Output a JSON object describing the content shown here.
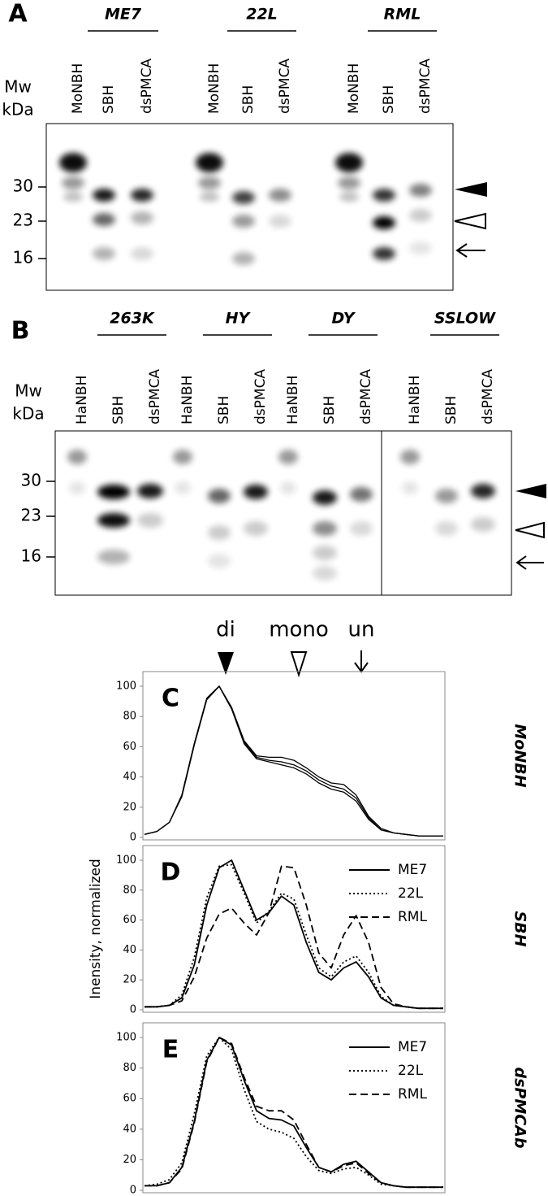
{
  "blots": [
    {
      "panel": "A",
      "mw": "Mw",
      "kda": "kDa",
      "markers": [
        "30",
        "23",
        "16"
      ],
      "groups": [
        "ME7",
        "22L",
        "RML"
      ],
      "lanes": [
        "MoNBH",
        "SBH",
        "dsPMCA",
        "MoNBH",
        "SBH",
        "dsPMCA",
        "MoNBH",
        "SBH",
        "dsPMCA"
      ]
    },
    {
      "panel": "B",
      "mw": "Mw",
      "kda": "kDa",
      "markers": [
        "30",
        "23",
        "16"
      ],
      "groups": [
        "263K",
        "HY",
        "DY",
        "SSLOW"
      ],
      "lanes": [
        "HaNBH",
        "SBH",
        "dsPMCA",
        "HaNBH",
        "SBH",
        "dsPMCA",
        "HaNBH",
        "SBH",
        "dsPMCA",
        "HaNBH",
        "SBH",
        "dsPMCA"
      ]
    }
  ],
  "chart_data": [
    {
      "type": "line",
      "panel": "C",
      "side_label": "MoNBH",
      "annotations": [
        "di",
        "mono",
        "un"
      ],
      "ylim": [
        0,
        100
      ],
      "yticks": [
        0,
        20,
        40,
        60,
        80,
        100
      ],
      "series": [
        {
          "color": "#000000",
          "dash": "solid",
          "values": [
            2,
            4,
            10,
            28,
            62,
            92,
            100,
            85,
            62,
            52,
            50,
            48,
            46,
            42,
            36,
            32,
            30,
            24,
            12,
            5,
            3,
            2,
            1,
            1,
            1
          ]
        },
        {
          "color": "#000000",
          "dash": "solid",
          "values": [
            2,
            4,
            10,
            28,
            62,
            92,
            100,
            86,
            64,
            54,
            53,
            53,
            51,
            46,
            40,
            36,
            35,
            28,
            14,
            6,
            3,
            2,
            1,
            1,
            1
          ]
        },
        {
          "color": "#000000",
          "dash": "solid",
          "values": [
            2,
            4,
            10,
            27,
            61,
            91,
            100,
            85,
            63,
            53,
            51,
            50,
            48,
            44,
            38,
            34,
            32,
            26,
            13,
            5,
            3,
            2,
            1,
            1,
            1
          ]
        }
      ]
    },
    {
      "type": "line",
      "panel": "D",
      "side_label": "SBH",
      "ylabel": "Inensity, normalized",
      "ylim": [
        0,
        100
      ],
      "yticks": [
        0,
        20,
        40,
        60,
        80,
        100
      ],
      "series": [
        {
          "name": "ME7",
          "color": "#000000",
          "dash": "solid",
          "values": [
            2,
            2,
            3,
            8,
            30,
            70,
            95,
            100,
            80,
            60,
            65,
            76,
            70,
            45,
            25,
            20,
            28,
            32,
            22,
            8,
            3,
            2,
            1,
            1,
            1
          ]
        },
        {
          "name": "22L",
          "color": "#000000",
          "dash": "dotted",
          "values": [
            2,
            2,
            3,
            10,
            35,
            75,
            96,
            97,
            78,
            58,
            66,
            78,
            74,
            50,
            28,
            22,
            32,
            36,
            25,
            9,
            3,
            2,
            1,
            1,
            1
          ]
        },
        {
          "name": "RML",
          "color": "#000000",
          "dash": "dashed",
          "values": [
            2,
            2,
            3,
            6,
            22,
            48,
            64,
            68,
            58,
            50,
            65,
            96,
            95,
            70,
            38,
            28,
            50,
            63,
            45,
            15,
            4,
            2,
            1,
            1,
            1
          ]
        }
      ]
    },
    {
      "type": "line",
      "panel": "E",
      "side_label": "dsPMCAb",
      "ylim": [
        0,
        100
      ],
      "yticks": [
        0,
        20,
        40,
        60,
        80,
        100
      ],
      "series": [
        {
          "name": "ME7",
          "color": "#000000",
          "dash": "solid",
          "values": [
            3,
            3,
            5,
            15,
            45,
            85,
            100,
            95,
            72,
            52,
            47,
            46,
            42,
            28,
            15,
            12,
            17,
            19,
            12,
            5,
            3,
            2,
            2,
            2,
            2
          ]
        },
        {
          "name": "22L",
          "color": "#000000",
          "dash": "dotted",
          "values": [
            3,
            4,
            7,
            18,
            50,
            88,
            100,
            92,
            66,
            45,
            40,
            38,
            34,
            22,
            13,
            11,
            14,
            15,
            10,
            4,
            3,
            2,
            2,
            2,
            2
          ]
        },
        {
          "name": "RML",
          "color": "#000000",
          "dash": "dashed",
          "values": [
            3,
            3,
            5,
            14,
            44,
            84,
            100,
            96,
            74,
            55,
            52,
            52,
            46,
            30,
            15,
            12,
            16,
            18,
            11,
            5,
            3,
            2,
            2,
            2,
            2
          ]
        }
      ]
    }
  ]
}
